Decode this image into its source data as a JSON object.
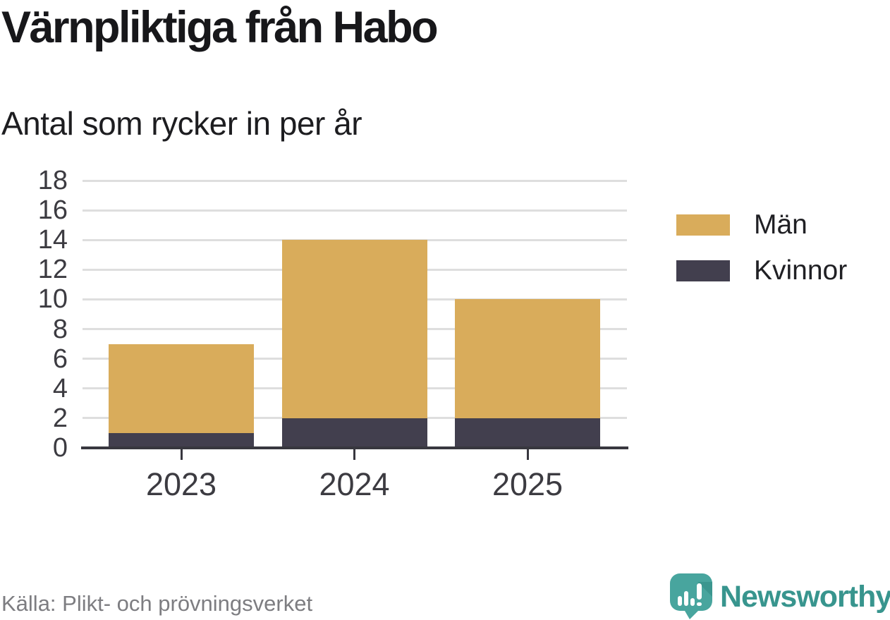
{
  "header": {
    "title": "Värnpliktiga från Habo",
    "subtitle": "Antal som rycker in per år"
  },
  "chart_data": {
    "type": "bar",
    "stacked": true,
    "title": "Värnpliktiga från Habo",
    "subtitle": "Antal som rycker in per år",
    "categories": [
      "2023",
      "2024",
      "2025"
    ],
    "series": [
      {
        "name": "Kvinnor",
        "values": [
          1,
          2,
          2
        ],
        "color": "#423f4e"
      },
      {
        "name": "Män",
        "values": [
          6,
          12,
          8
        ],
        "color": "#d9ac5b"
      }
    ],
    "totals": [
      7,
      14,
      10
    ],
    "xlabel": "",
    "ylabel": "",
    "ylim": [
      0,
      18
    ],
    "yticks": [
      0,
      2,
      4,
      6,
      8,
      10,
      12,
      14,
      16,
      18
    ],
    "grid": "horizontal",
    "legend_position": "right"
  },
  "legend": {
    "items": [
      {
        "label": "Män",
        "color": "#d9ac5b"
      },
      {
        "label": "Kvinnor",
        "color": "#423f4e"
      }
    ]
  },
  "footer": {
    "source": "Källa: Plikt- och prövningsverket",
    "brand": "Newsworthy",
    "brand_icon": "speech-bubble-bar-chart-icon"
  },
  "colors": {
    "men": "#d9ac5b",
    "women": "#423f4e",
    "axis": "#38373f",
    "grid": "#dedede",
    "tick_label": "#3c3b41",
    "source_text": "#7d7d81",
    "brand_teal": "#38958e",
    "background": "#ffffff"
  }
}
